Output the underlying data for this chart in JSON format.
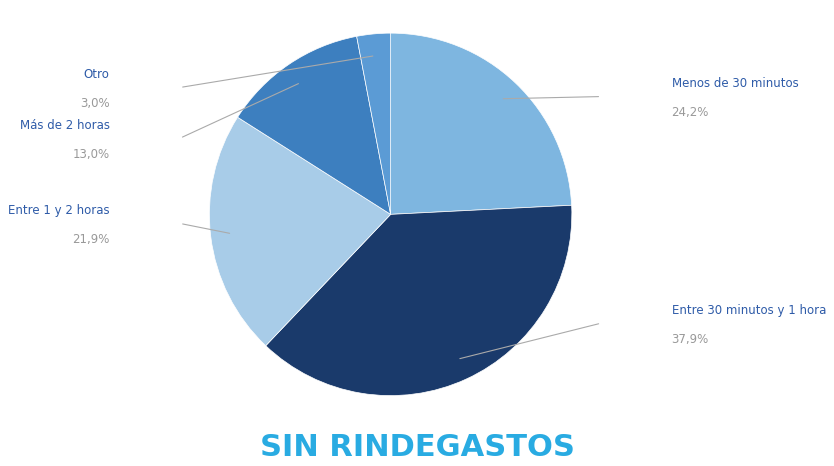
{
  "slices": [
    {
      "label": "Menos de 30 minutos",
      "pct": 24.2,
      "color": "#7EB6E0"
    },
    {
      "label": "Entre 30 minutos y 1 hora",
      "pct": 37.9,
      "color": "#1A3A6B"
    },
    {
      "label": "Entre 1 y 2 horas",
      "pct": 21.9,
      "color": "#A8CCE8"
    },
    {
      "label": "Más de 2 horas",
      "pct": 13.0,
      "color": "#3D7FBF"
    },
    {
      "label": "Otro",
      "pct": 3.0,
      "color": "#5B9BD5"
    }
  ],
  "title": "SIN RINDEGASTOS",
  "title_color": "#29ABE2",
  "title_fontsize": 22,
  "label_color_name": "#2E5BA8",
  "label_color_pct": "#999999",
  "background_color": "#FFFFFF"
}
